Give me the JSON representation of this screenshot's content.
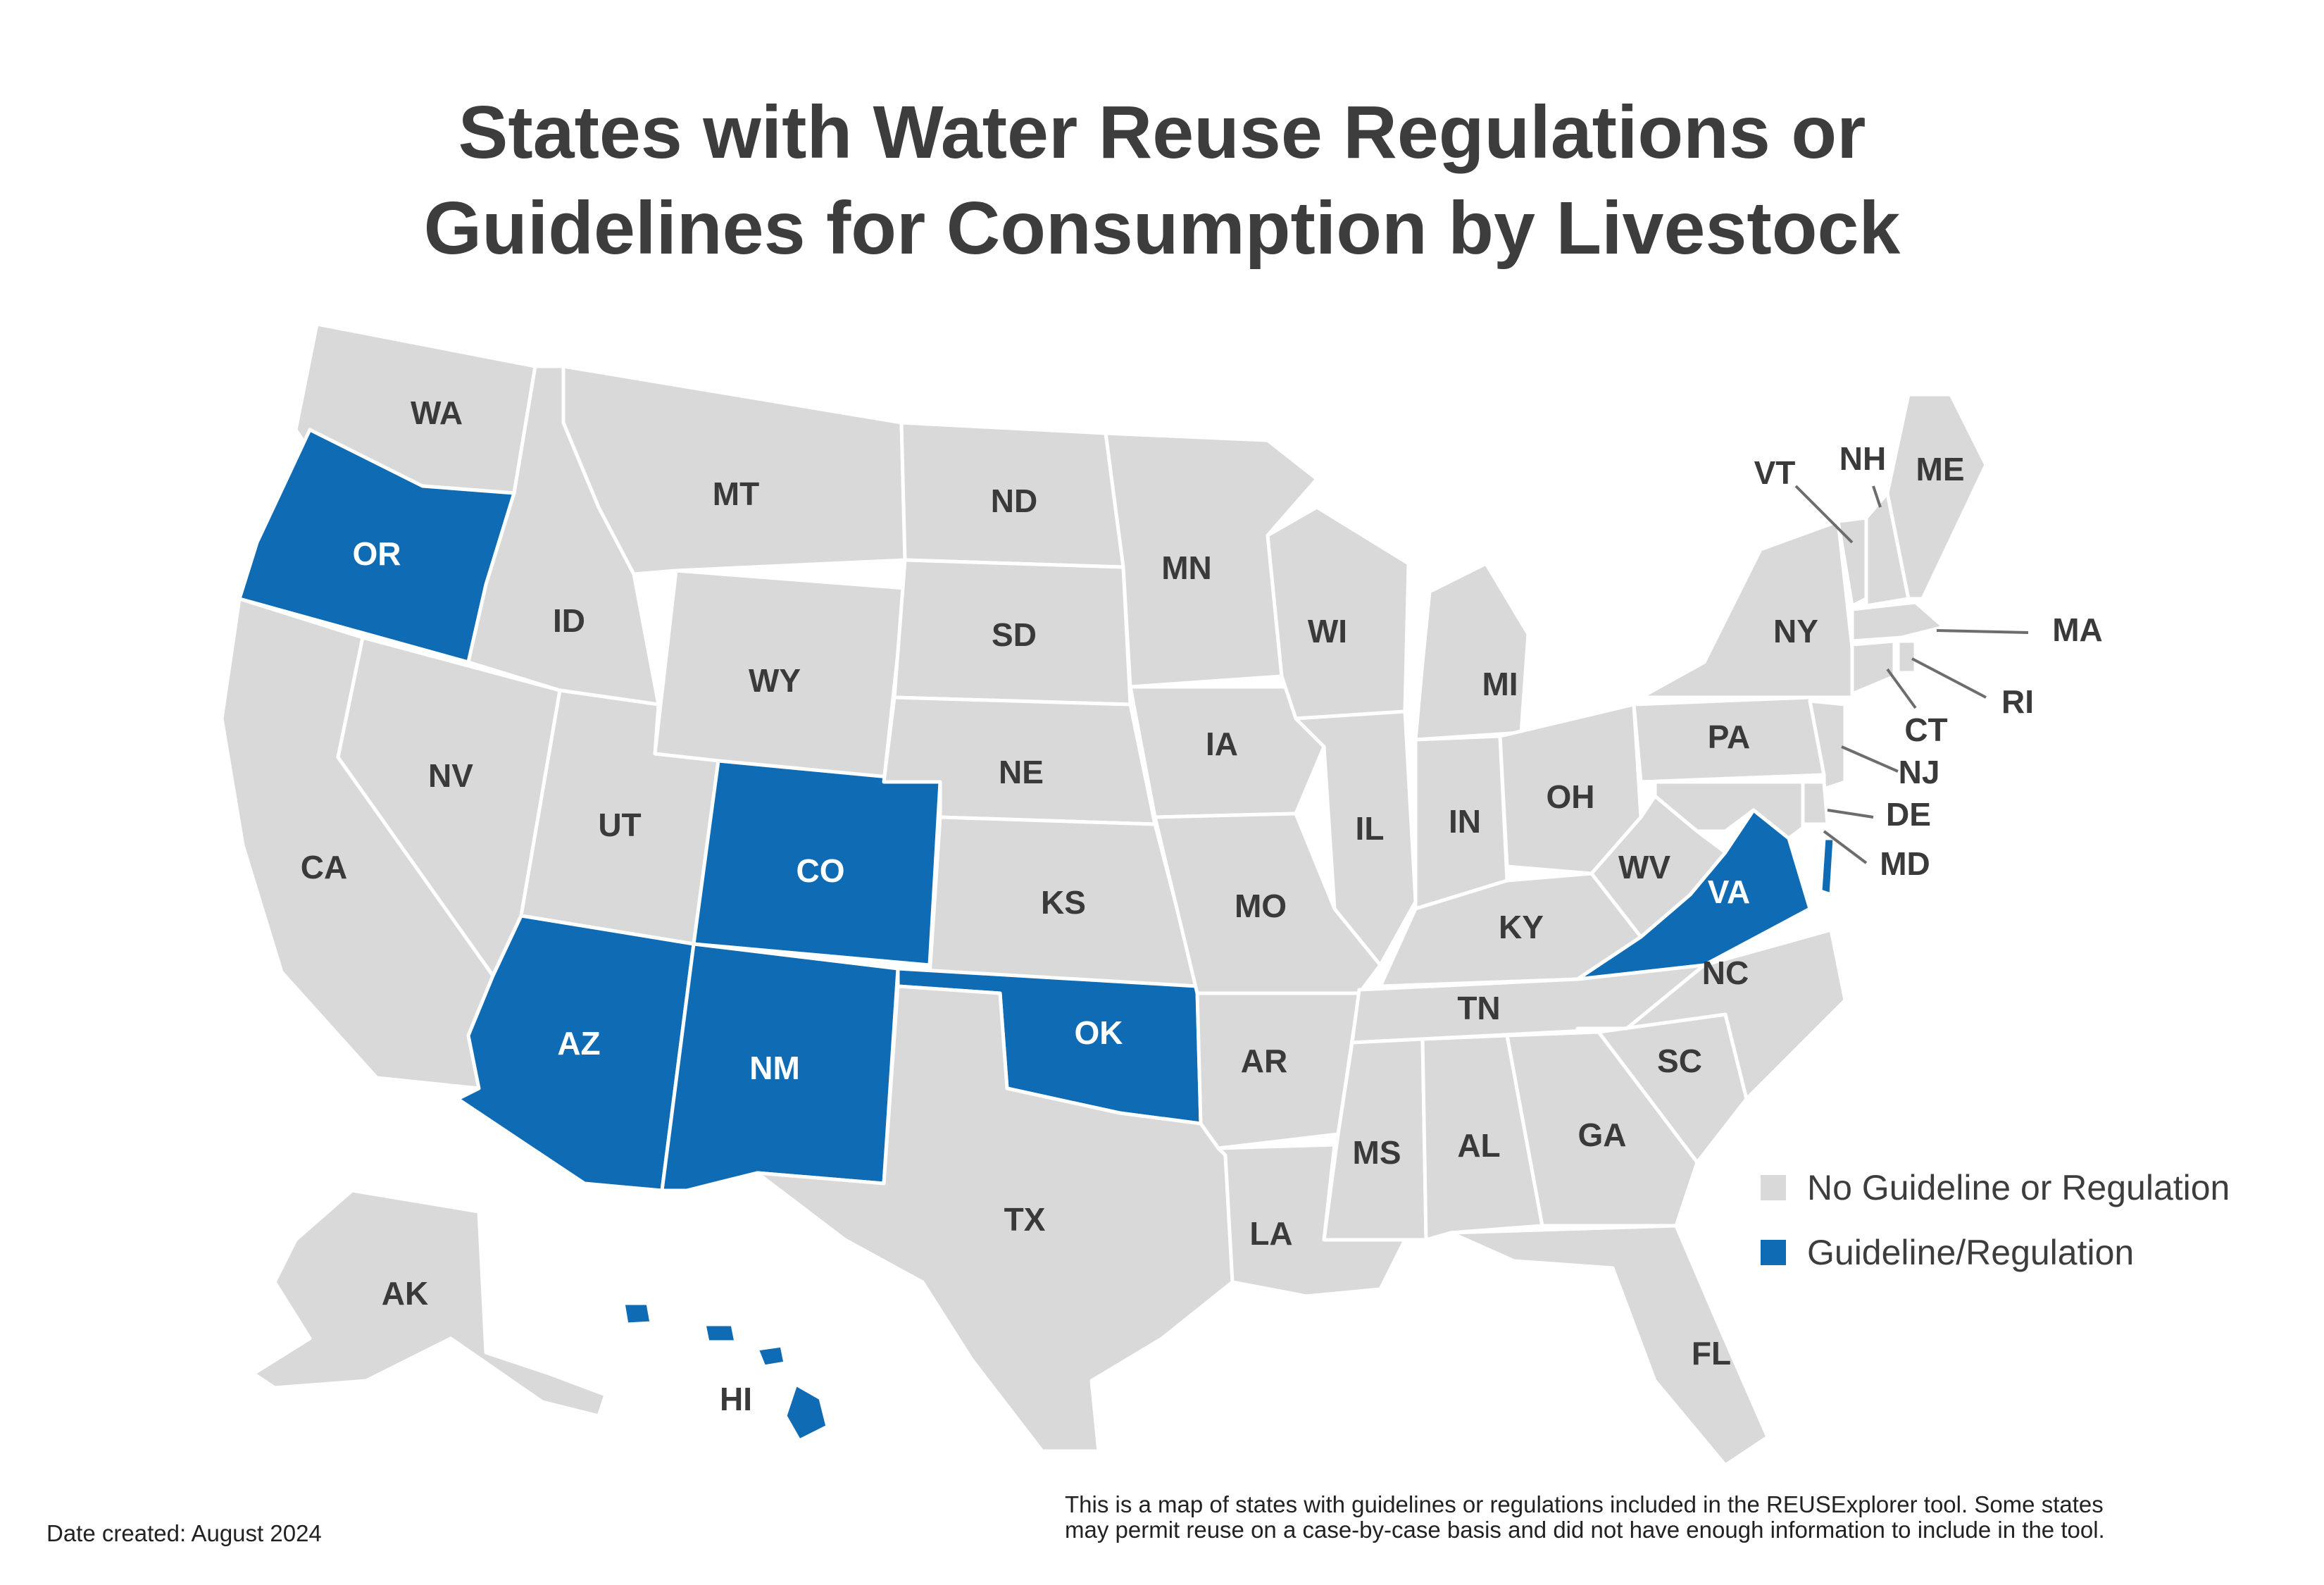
{
  "title": {
    "line1": "States with Water Reuse Regulations or",
    "line2": "Guidelines for Consumption by Livestock"
  },
  "colors": {
    "no_guideline": "#d9d9d9",
    "guideline": "#0e6bb4",
    "border": "#ffffff"
  },
  "legend": {
    "items": [
      {
        "label": "No Guideline or Regulation",
        "color": "#d9d9d9"
      },
      {
        "label": "Guideline/Regulation",
        "color": "#0e6bb4"
      }
    ]
  },
  "regulated_states": [
    "OR",
    "CO",
    "AZ",
    "NM",
    "OK",
    "VA",
    "HI"
  ],
  "state_labels": {
    "WA": "WA",
    "OR": "OR",
    "CA": "CA",
    "NV": "NV",
    "ID": "ID",
    "MT": "MT",
    "WY": "WY",
    "UT": "UT",
    "CO": "CO",
    "AZ": "AZ",
    "NM": "NM",
    "ND": "ND",
    "SD": "SD",
    "NE": "NE",
    "KS": "KS",
    "OK": "OK",
    "TX": "TX",
    "MN": "MN",
    "IA": "IA",
    "MO": "MO",
    "AR": "AR",
    "LA": "LA",
    "WI": "WI",
    "IL": "IL",
    "MI": "MI",
    "IN": "IN",
    "OH": "OH",
    "KY": "KY",
    "TN": "TN",
    "MS": "MS",
    "AL": "AL",
    "GA": "GA",
    "FL": "FL",
    "SC": "SC",
    "NC": "NC",
    "VA": "VA",
    "WV": "WV",
    "PA": "PA",
    "NY": "NY",
    "VT": "VT",
    "NH": "NH",
    "ME": "ME",
    "MA": "MA",
    "RI": "RI",
    "CT": "CT",
    "NJ": "NJ",
    "DE": "DE",
    "MD": "MD",
    "AK": "AK",
    "HI": "HI"
  },
  "footer": {
    "date": "Date created: August 2024",
    "note_line1": "This is a map of states with guidelines or regulations included in the REUSExplorer tool. Some states",
    "note_line2": "may permit reuse on a case-by-case basis and did not have enough information to include in the tool."
  }
}
